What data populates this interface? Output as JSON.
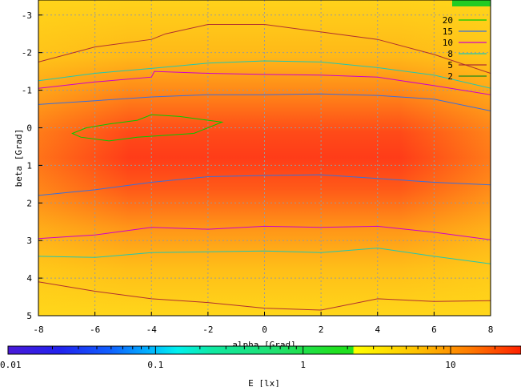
{
  "chart_data": {
    "type": "heatmap",
    "xlabel": "alpha [Grad]",
    "ylabel": "beta [Grad]",
    "xlim": [
      -8,
      8
    ],
    "ylim": [
      -3.4,
      5
    ],
    "y_reversed": true,
    "x_ticks": [
      "-8",
      "-6",
      "-4",
      "-2",
      "0",
      "2",
      "4",
      "6",
      "8"
    ],
    "y_ticks": [
      "-3",
      "-2",
      "-1",
      "0",
      "1",
      "2",
      "3",
      "4",
      "5"
    ],
    "grid": true,
    "legend_position": "top-right",
    "contours": [
      {
        "level": "20",
        "color": "#00cc00",
        "points": [
          [
            -6.8,
            0.15
          ],
          [
            -6.3,
            0.0
          ],
          [
            -5.5,
            -0.1
          ],
          [
            -4.5,
            -0.2
          ],
          [
            -4.0,
            -0.35
          ],
          [
            -3.0,
            -0.3
          ],
          [
            -2.0,
            -0.2
          ],
          [
            -1.5,
            -0.15
          ],
          [
            -2.5,
            0.15
          ],
          [
            -3.5,
            0.2
          ],
          [
            -4.5,
            0.25
          ],
          [
            -5.5,
            0.35
          ],
          [
            -6.5,
            0.25
          ],
          [
            -6.8,
            0.15
          ]
        ],
        "closed": true
      },
      {
        "level": "15",
        "color": "#3b6fdc",
        "points": [
          [
            -8,
            -0.62
          ],
          [
            -6,
            -0.72
          ],
          [
            -4,
            -0.82
          ],
          [
            -2,
            -0.88
          ],
          [
            0,
            -0.88
          ],
          [
            2,
            -0.9
          ],
          [
            4,
            -0.86
          ],
          [
            6,
            -0.76
          ],
          [
            8,
            -0.45
          ]
        ]
      },
      {
        "level": "15",
        "color": "#3b6fdc",
        "points": [
          [
            -8,
            1.8
          ],
          [
            -6,
            1.65
          ],
          [
            -4,
            1.45
          ],
          [
            -2,
            1.3
          ],
          [
            0,
            1.27
          ],
          [
            2,
            1.25
          ],
          [
            4,
            1.35
          ],
          [
            6,
            1.45
          ],
          [
            8,
            1.52
          ]
        ]
      },
      {
        "level": "10",
        "color": "#cc00cc",
        "points": [
          [
            -8,
            -1.05
          ],
          [
            -6,
            -1.22
          ],
          [
            -4,
            -1.35
          ],
          [
            -3.9,
            -1.5
          ],
          [
            -2,
            -1.45
          ],
          [
            0,
            -1.42
          ],
          [
            2,
            -1.4
          ],
          [
            4,
            -1.35
          ],
          [
            6,
            -1.12
          ],
          [
            8,
            -0.88
          ]
        ]
      },
      {
        "level": "10",
        "color": "#cc00cc",
        "points": [
          [
            -8,
            2.95
          ],
          [
            -6,
            2.85
          ],
          [
            -4,
            2.65
          ],
          [
            -2,
            2.7
          ],
          [
            0,
            2.62
          ],
          [
            2,
            2.65
          ],
          [
            4,
            2.62
          ],
          [
            6,
            2.78
          ],
          [
            8,
            2.98
          ]
        ]
      },
      {
        "level": "8",
        "color": "#22c8b0",
        "points": [
          [
            -8,
            -1.25
          ],
          [
            -6,
            -1.45
          ],
          [
            -4,
            -1.58
          ],
          [
            -2,
            -1.72
          ],
          [
            0,
            -1.78
          ],
          [
            2,
            -1.75
          ],
          [
            4,
            -1.6
          ],
          [
            6,
            -1.4
          ],
          [
            8,
            -1.05
          ]
        ]
      },
      {
        "level": "8",
        "color": "#22c8b0",
        "points": [
          [
            -8,
            3.42
          ],
          [
            -6,
            3.45
          ],
          [
            -4,
            3.32
          ],
          [
            -2,
            3.3
          ],
          [
            0,
            3.28
          ],
          [
            2,
            3.32
          ],
          [
            4,
            3.2
          ],
          [
            6,
            3.42
          ],
          [
            8,
            3.62
          ]
        ]
      },
      {
        "level": "5",
        "color": "#b03030",
        "points": [
          [
            -8,
            -1.75
          ],
          [
            -6,
            -2.15
          ],
          [
            -4,
            -2.35
          ],
          [
            -3.5,
            -2.5
          ],
          [
            -2,
            -2.75
          ],
          [
            0,
            -2.75
          ],
          [
            2,
            -2.55
          ],
          [
            4,
            -2.35
          ],
          [
            6,
            -1.95
          ],
          [
            8,
            -1.45
          ]
        ]
      },
      {
        "level": "5",
        "color": "#b03030",
        "points": [
          [
            -8,
            4.1
          ],
          [
            -6,
            4.35
          ],
          [
            -4,
            4.55
          ],
          [
            -2,
            4.65
          ],
          [
            0,
            4.8
          ],
          [
            2,
            4.85
          ],
          [
            4,
            4.55
          ],
          [
            6,
            4.62
          ],
          [
            8,
            4.6
          ]
        ]
      }
    ],
    "legend": [
      {
        "label": "20",
        "color": "#00cc00"
      },
      {
        "label": "15",
        "color": "#3b6fdc"
      },
      {
        "label": "10",
        "color": "#cc00cc"
      },
      {
        "label": "8",
        "color": "#22c8b0"
      },
      {
        "label": "5",
        "color": "#b03030"
      },
      {
        "label": "2",
        "color": "#1a8a1a"
      }
    ],
    "colorbar": {
      "label": "E [lx]",
      "scale": "log",
      "range": [
        0.01,
        30
      ],
      "ticks": [
        "0.01",
        "0.1",
        "1",
        "10"
      ]
    }
  }
}
